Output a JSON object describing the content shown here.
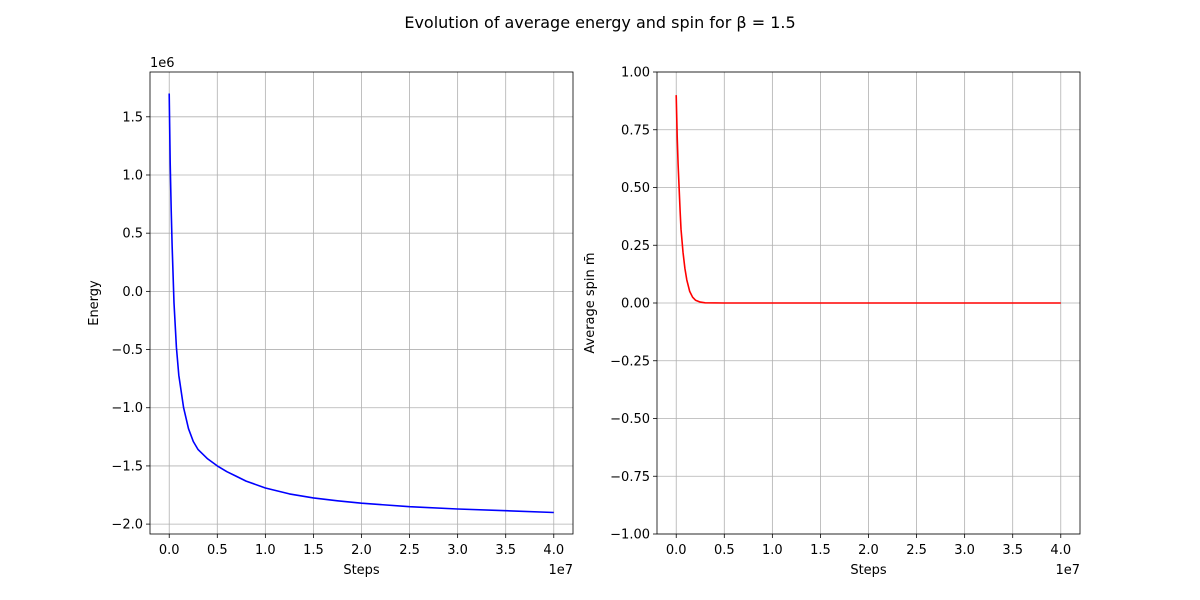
{
  "figure": {
    "suptitle": "Evolution of average energy and spin for β = 1.5"
  },
  "chart_data": [
    {
      "type": "line",
      "xlabel": "Steps",
      "ylabel": "Energy",
      "x_offset_label": "1e7",
      "y_offset_label": "1e6",
      "x_scale_exponent": 7,
      "y_scale_exponent": 6,
      "xlim": [
        -2000000,
        42000000
      ],
      "ylim": [
        -2085000,
        1885000
      ],
      "xticks": [
        0,
        5000000,
        10000000,
        15000000,
        20000000,
        25000000,
        30000000,
        35000000,
        40000000
      ],
      "xtick_labels": [
        "0.0",
        "0.5",
        "1.0",
        "1.5",
        "2.0",
        "2.5",
        "3.0",
        "3.5",
        "4.0"
      ],
      "yticks": [
        -2000000,
        -1500000,
        -1000000,
        -500000,
        0,
        500000,
        1000000,
        1500000
      ],
      "ytick_labels": [
        "−2.0",
        "−1.5",
        "−1.0",
        "−0.5",
        "0.0",
        "0.5",
        "1.0",
        "1.5"
      ],
      "grid": true,
      "series": [
        {
          "color": "#0000ff",
          "x": [
            0,
            100000,
            200000,
            300000,
            500000,
            750000,
            1000000,
            1500000,
            2000000,
            2500000,
            3000000,
            4000000,
            5000000,
            6000000,
            7000000,
            8000000,
            10000000,
            12500000,
            15000000,
            17500000,
            20000000,
            25000000,
            30000000,
            35000000,
            40000000
          ],
          "y": [
            1700000,
            1100000,
            700000,
            400000,
            -100000,
            -480000,
            -720000,
            -1000000,
            -1180000,
            -1290000,
            -1360000,
            -1440000,
            -1500000,
            -1550000,
            -1590000,
            -1630000,
            -1690000,
            -1740000,
            -1775000,
            -1800000,
            -1820000,
            -1850000,
            -1870000,
            -1885000,
            -1900000
          ]
        }
      ]
    },
    {
      "type": "line",
      "xlabel": "Steps",
      "ylabel": "Average spin m̄",
      "x_offset_label": "1e7",
      "x_scale_exponent": 7,
      "xlim": [
        -2000000,
        42000000
      ],
      "ylim": [
        -1.0,
        1.0
      ],
      "xticks": [
        0,
        5000000,
        10000000,
        15000000,
        20000000,
        25000000,
        30000000,
        35000000,
        40000000
      ],
      "xtick_labels": [
        "0.0",
        "0.5",
        "1.0",
        "1.5",
        "2.0",
        "2.5",
        "3.0",
        "3.5",
        "4.0"
      ],
      "yticks": [
        -1.0,
        -0.75,
        -0.5,
        -0.25,
        0.0,
        0.25,
        0.5,
        0.75,
        1.0
      ],
      "ytick_labels": [
        "−1.00",
        "−0.75",
        "−0.50",
        "−0.25",
        "0.00",
        "0.25",
        "0.50",
        "0.75",
        "1.00"
      ],
      "grid": true,
      "series": [
        {
          "color": "#ff0000",
          "x": [
            0,
            100000,
            200000,
            300000,
            400000,
            500000,
            700000,
            900000,
            1100000,
            1400000,
            1700000,
            2000000,
            2500000,
            3000000,
            5000000,
            10000000,
            20000000,
            30000000,
            40000000
          ],
          "y": [
            0.9,
            0.72,
            0.6,
            0.5,
            0.4,
            0.32,
            0.22,
            0.15,
            0.1,
            0.05,
            0.025,
            0.012,
            0.004,
            0.001,
            0.0,
            0.0,
            0.0,
            0.0,
            0.0
          ]
        }
      ]
    }
  ]
}
